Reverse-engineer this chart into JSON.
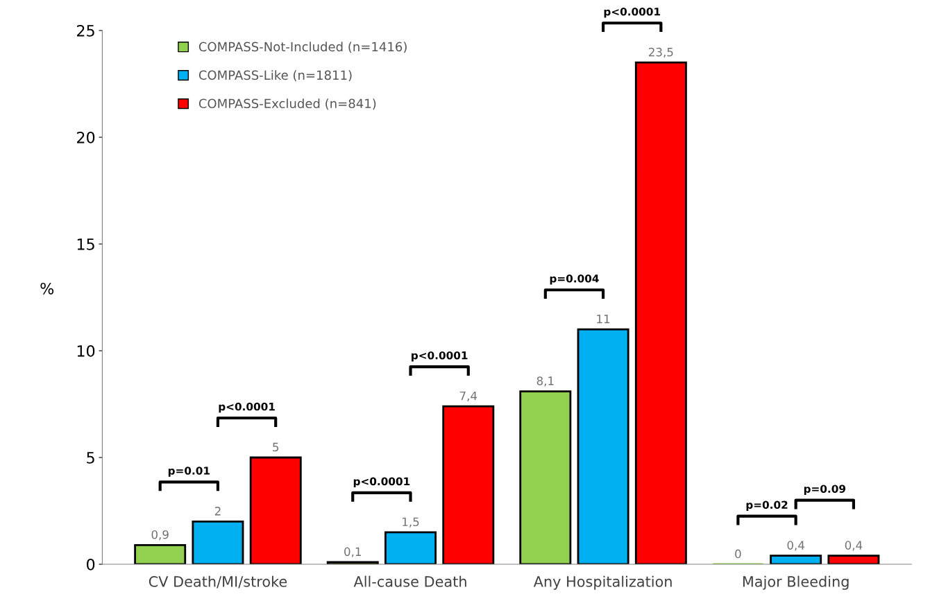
{
  "chart_data": {
    "type": "bar",
    "ylabel": "%",
    "categories": [
      "CV Death/MI/stroke",
      "All-cause Death",
      "Any Hospitalization",
      "Major Bleeding"
    ],
    "series": [
      {
        "name": "COMPASS-Not-Included (n=1416)",
        "color": "#92d050",
        "values": [
          0.9,
          0.1,
          8.1,
          0
        ],
        "value_labels": [
          "0,9",
          "0,1",
          "8,1",
          "0"
        ]
      },
      {
        "name": "COMPASS-Like (n=1811)",
        "color": "#00b0f0",
        "values": [
          2,
          1.5,
          11,
          0.4
        ],
        "value_labels": [
          "2",
          "1,5",
          "11",
          "0,4"
        ]
      },
      {
        "name": "COMPASS-Excluded (n=841)",
        "color": "#ff0000",
        "values": [
          5,
          7.4,
          23.5,
          0.4
        ],
        "value_labels": [
          "5",
          "7,4",
          "23,5",
          "0,4"
        ]
      }
    ],
    "ylim": [
      0,
      25
    ],
    "yticks": [
      0,
      5,
      10,
      15,
      20,
      25
    ],
    "grid": false,
    "legend": "top left",
    "annotations": [
      "p=0.01",
      "p<0.0001",
      "p<0.0001",
      "p<0.0001",
      "p=0.004",
      "p<0.0001",
      "p=0.02",
      "p=0.09"
    ]
  }
}
